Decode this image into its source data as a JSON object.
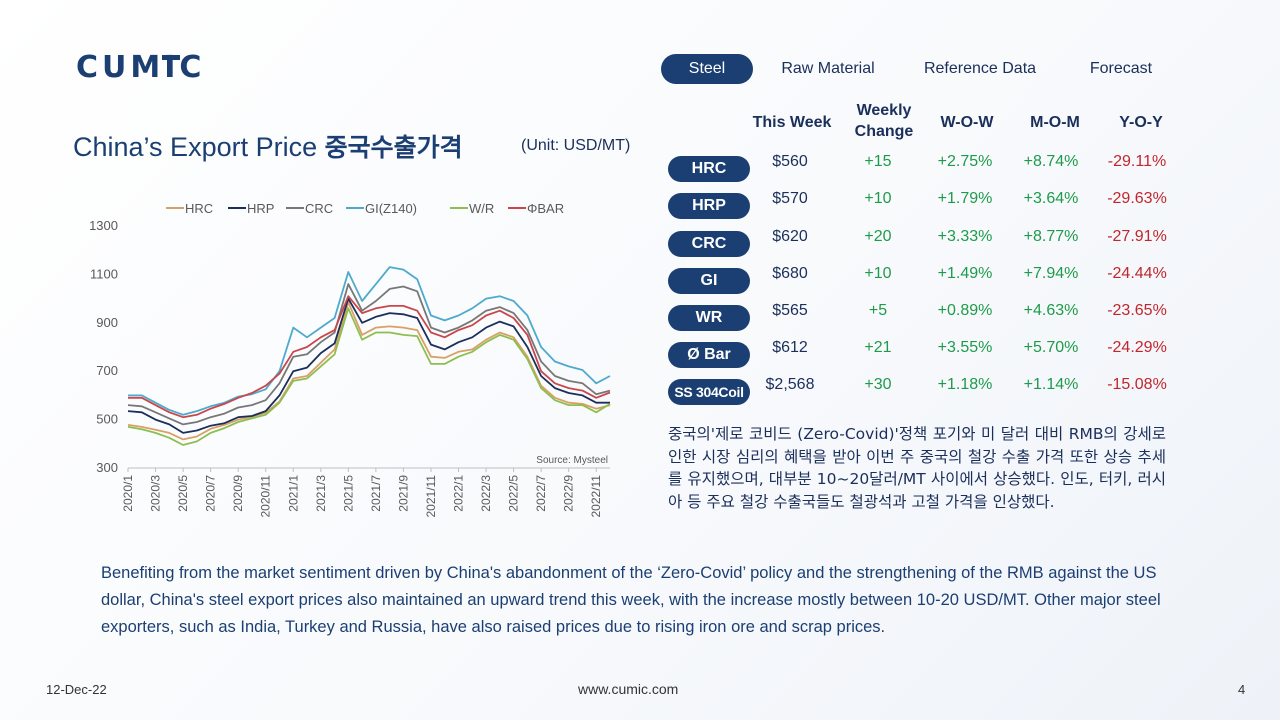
{
  "logo_text": "CUMIC",
  "tabs": [
    {
      "label": "Steel",
      "active": true
    },
    {
      "label": "Raw Material",
      "active": false
    },
    {
      "label": "Reference Data",
      "active": false
    },
    {
      "label": "Forecast",
      "active": false
    }
  ],
  "title_en": "China’s Export Price",
  "title_ko": "중국수출가격",
  "unit": "(Unit: USD/MT)",
  "table": {
    "headers": {
      "this_week": "This Week",
      "weekly_change_1": "Weekly",
      "weekly_change_2": "Change",
      "wow": "W-O-W",
      "mom": "M-O-M",
      "yoy": "Y-O-Y"
    },
    "rows": [
      {
        "product": "HRC",
        "this_week": "$560",
        "change": "+15",
        "wow": "+2.75%",
        "mom": "+8.74%",
        "yoy": "-29.11%"
      },
      {
        "product": "HRP",
        "this_week": "$570",
        "change": "+10",
        "wow": "+1.79%",
        "mom": "+3.64%",
        "yoy": "-29.63%"
      },
      {
        "product": "CRC",
        "this_week": "$620",
        "change": "+20",
        "wow": "+3.33%",
        "mom": "+8.77%",
        "yoy": "-27.91%"
      },
      {
        "product": "GI",
        "this_week": "$680",
        "change": "+10",
        "wow": "+1.49%",
        "mom": "+7.94%",
        "yoy": "-24.44%"
      },
      {
        "product": "WR",
        "this_week": "$565",
        "change": "+5",
        "wow": "+0.89%",
        "mom": "+4.63%",
        "yoy": "-23.65%"
      },
      {
        "product": "Ø Bar",
        "this_week": "$612",
        "change": "+21",
        "wow": "+3.55%",
        "mom": "+5.70%",
        "yoy": "-24.29%"
      },
      {
        "product": "SS 304Coil",
        "this_week": "$2,568",
        "change": "+30",
        "wow": "+1.18%",
        "mom": "+1.14%",
        "yoy": "-15.08%"
      }
    ],
    "colors": {
      "positive": "#1e9b4a",
      "negative": "#c0272d",
      "pill": "#1b3f73"
    }
  },
  "korean_note": "중국의'제로 코비드 (Zero-Covid)'정책 포기와 미 달러 대비 RMB의 강세로 인한 시장 심리의 혜택을 받아 이번 주 중국의 철강 수출 가격 또한 상승 추세를 유지했으며, 대부분 10~20달러/MT 사이에서 상승했다. 인도, 터키, 러시아 등 주요 철강 수출국들도 철광석과 고철 가격을 인상했다.",
  "english_note": "Benefiting from the market sentiment driven by China's abandonment of the ‘Zero-Covid’ policy and the strengthening of the RMB against the US dollar, China's steel export prices also maintained an upward trend this week, with the increase mostly between 10-20 USD/MT. Other major steel exporters, such as India, Turkey and Russia, have also raised prices due to rising iron ore and scrap prices.",
  "footer": {
    "date": "12-Dec-22",
    "url": "www.cumic.com",
    "page": "4"
  },
  "chart_data": {
    "type": "line",
    "ylim": [
      300,
      1300
    ],
    "yticks": [
      300,
      500,
      700,
      900,
      1100,
      1300
    ],
    "x_start": "2020/1",
    "x_end": "2022/12",
    "xticks": [
      "2020/1",
      "2020/3",
      "2020/5",
      "2020/7",
      "2020/9",
      "2020/11",
      "2021/1",
      "2021/3",
      "2021/5",
      "2021/7",
      "2021/9",
      "2021/11",
      "2022/1",
      "2022/3",
      "2022/5",
      "2022/7",
      "2022/9",
      "2022/11"
    ],
    "legend_position": "top",
    "source": "Source: Mysteel",
    "grid": false,
    "series": [
      {
        "name": "HRC",
        "color": "#d9a066",
        "x": [
          "2020/1",
          "2020/2",
          "2020/3",
          "2020/4",
          "2020/5",
          "2020/6",
          "2020/7",
          "2020/8",
          "2020/9",
          "2020/10",
          "2020/11",
          "2020/12",
          "2021/1",
          "2021/2",
          "2021/3",
          "2021/4",
          "2021/5",
          "2021/6",
          "2021/7",
          "2021/8",
          "2021/9",
          "2021/10",
          "2021/11",
          "2021/12",
          "2022/1",
          "2022/2",
          "2022/3",
          "2022/4",
          "2022/5",
          "2022/6",
          "2022/7",
          "2022/8",
          "2022/9",
          "2022/10",
          "2022/11",
          "2022/12"
        ],
        "y": [
          478,
          470,
          458,
          445,
          418,
          430,
          462,
          478,
          500,
          512,
          528,
          575,
          670,
          680,
          735,
          790,
          985,
          850,
          880,
          885,
          880,
          870,
          760,
          755,
          780,
          790,
          830,
          860,
          840,
          760,
          640,
          590,
          570,
          565,
          545,
          560
        ]
      },
      {
        "name": "HRP",
        "color": "#1b2f5b",
        "x": [
          "2020/1",
          "2020/2",
          "2020/3",
          "2020/4",
          "2020/5",
          "2020/6",
          "2020/7",
          "2020/8",
          "2020/9",
          "2020/10",
          "2020/11",
          "2020/12",
          "2021/1",
          "2021/2",
          "2021/3",
          "2021/4",
          "2021/5",
          "2021/6",
          "2021/7",
          "2021/8",
          "2021/9",
          "2021/10",
          "2021/11",
          "2021/12",
          "2022/1",
          "2022/2",
          "2022/3",
          "2022/4",
          "2022/5",
          "2022/6",
          "2022/7",
          "2022/8",
          "2022/9",
          "2022/10",
          "2022/11",
          "2022/12"
        ],
        "y": [
          535,
          530,
          500,
          480,
          445,
          455,
          475,
          485,
          510,
          515,
          535,
          600,
          700,
          715,
          775,
          815,
          1000,
          900,
          925,
          940,
          935,
          920,
          810,
          790,
          820,
          840,
          880,
          905,
          885,
          800,
          680,
          630,
          610,
          600,
          570,
          570
        ]
      },
      {
        "name": "CRC",
        "color": "#777777",
        "x": [
          "2020/1",
          "2020/2",
          "2020/3",
          "2020/4",
          "2020/5",
          "2020/6",
          "2020/7",
          "2020/8",
          "2020/9",
          "2020/10",
          "2020/11",
          "2020/12",
          "2021/1",
          "2021/2",
          "2021/3",
          "2021/4",
          "2021/5",
          "2021/6",
          "2021/7",
          "2021/8",
          "2021/9",
          "2021/10",
          "2021/11",
          "2021/12",
          "2022/1",
          "2022/2",
          "2022/3",
          "2022/4",
          "2022/5",
          "2022/6",
          "2022/7",
          "2022/8",
          "2022/9",
          "2022/10",
          "2022/11",
          "2022/12"
        ],
        "y": [
          560,
          555,
          530,
          505,
          480,
          490,
          510,
          525,
          550,
          560,
          580,
          650,
          760,
          770,
          820,
          860,
          1060,
          950,
          990,
          1040,
          1050,
          1030,
          880,
          860,
          880,
          910,
          950,
          965,
          940,
          870,
          740,
          680,
          660,
          650,
          605,
          620
        ]
      },
      {
        "name": "GI(Z140)",
        "color": "#4eaacc",
        "x": [
          "2020/1",
          "2020/2",
          "2020/3",
          "2020/4",
          "2020/5",
          "2020/6",
          "2020/7",
          "2020/8",
          "2020/9",
          "2020/10",
          "2020/11",
          "2020/12",
          "2021/1",
          "2021/2",
          "2021/3",
          "2021/4",
          "2021/5",
          "2021/6",
          "2021/7",
          "2021/8",
          "2021/9",
          "2021/10",
          "2021/11",
          "2021/12",
          "2022/1",
          "2022/2",
          "2022/3",
          "2022/4",
          "2022/5",
          "2022/6",
          "2022/7",
          "2022/8",
          "2022/9",
          "2022/10",
          "2022/11",
          "2022/12"
        ],
        "y": [
          600,
          600,
          570,
          540,
          520,
          535,
          555,
          570,
          595,
          605,
          625,
          700,
          880,
          840,
          880,
          920,
          1110,
          990,
          1060,
          1130,
          1120,
          1080,
          930,
          910,
          930,
          960,
          1000,
          1010,
          990,
          930,
          800,
          740,
          720,
          705,
          650,
          680
        ]
      },
      {
        "name": "W/R",
        "color": "#8cbf4f",
        "x": [
          "2020/1",
          "2020/2",
          "2020/3",
          "2020/4",
          "2020/5",
          "2020/6",
          "2020/7",
          "2020/8",
          "2020/9",
          "2020/10",
          "2020/11",
          "2020/12",
          "2021/1",
          "2021/2",
          "2021/3",
          "2021/4",
          "2021/5",
          "2021/6",
          "2021/7",
          "2021/8",
          "2021/9",
          "2021/10",
          "2021/11",
          "2021/12",
          "2022/1",
          "2022/2",
          "2022/3",
          "2022/4",
          "2022/5",
          "2022/6",
          "2022/7",
          "2022/8",
          "2022/9",
          "2022/10",
          "2022/11",
          "2022/12"
        ],
        "y": [
          470,
          460,
          445,
          425,
          395,
          410,
          445,
          465,
          490,
          505,
          520,
          570,
          660,
          670,
          720,
          770,
          960,
          830,
          860,
          860,
          850,
          845,
          730,
          730,
          760,
          780,
          820,
          850,
          830,
          750,
          630,
          580,
          560,
          560,
          530,
          565
        ]
      },
      {
        "name": "ΦBAR",
        "color": "#c9474b",
        "x": [
          "2020/1",
          "2020/2",
          "2020/3",
          "2020/4",
          "2020/5",
          "2020/6",
          "2020/7",
          "2020/8",
          "2020/9",
          "2020/10",
          "2020/11",
          "2020/12",
          "2021/1",
          "2021/2",
          "2021/3",
          "2021/4",
          "2021/5",
          "2021/6",
          "2021/7",
          "2021/8",
          "2021/9",
          "2021/10",
          "2021/11",
          "2021/12",
          "2022/1",
          "2022/2",
          "2022/3",
          "2022/4",
          "2022/5",
          "2022/6",
          "2022/7",
          "2022/8",
          "2022/9",
          "2022/10",
          "2022/11",
          "2022/12"
        ],
        "y": [
          590,
          590,
          560,
          530,
          510,
          520,
          545,
          565,
          590,
          610,
          640,
          690,
          780,
          800,
          840,
          870,
          1010,
          940,
          960,
          970,
          970,
          950,
          860,
          840,
          870,
          890,
          930,
          950,
          920,
          850,
          700,
          650,
          630,
          620,
          590,
          612
        ]
      }
    ]
  }
}
